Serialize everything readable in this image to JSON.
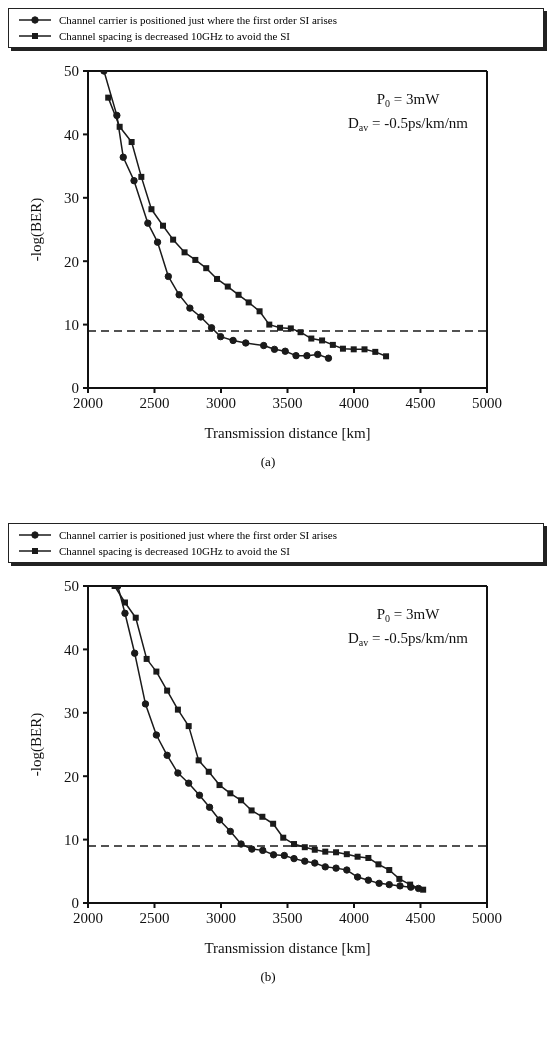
{
  "chart_data": [
    {
      "type": "line",
      "xlabel": "Transmission distance [km]",
      "ylabel": "-log(BER)",
      "xlim": [
        2000,
        5000
      ],
      "xticks": [
        2000,
        2500,
        3000,
        3500,
        4000,
        4500,
        5000
      ],
      "ylim": [
        0,
        50
      ],
      "yticks": [
        0,
        10,
        20,
        30,
        40,
        50
      ],
      "legend": "top",
      "grid": false,
      "line_style": "solid",
      "series": [
        {
          "name": "Channel carrier is positioned just where the first order SI arises",
          "color": "#1a1a1a",
          "marker": "circle",
          "x": [
            2120,
            2217,
            2265,
            2346,
            2450,
            2523,
            2604,
            2685,
            2766,
            2848,
            2929,
            2997,
            3091,
            3186,
            3321,
            3402,
            3483,
            3564,
            3646,
            3727,
            3808
          ],
          "values": [
            50,
            43,
            36.4,
            32.7,
            26,
            23,
            17.6,
            14.7,
            12.6,
            11.2,
            9.5,
            8.1,
            7.5,
            7.1,
            6.7,
            6.1,
            5.8,
            5.1,
            5.1,
            5.3,
            4.7
          ]
        },
        {
          "name": "Channel spacing is decreased 10GHz to avoid the SI",
          "color": "#1a1a1a",
          "marker": "square",
          "x": [
            2152,
            2238,
            2328,
            2401,
            2477,
            2564,
            2640,
            2726,
            2807,
            2889,
            2970,
            3051,
            3132,
            3208,
            3290,
            3363,
            3444,
            3525,
            3598,
            3679,
            3760,
            3841,
            3917,
            3998,
            4079,
            4160,
            4241
          ],
          "values": [
            45.8,
            41.2,
            38.8,
            33.3,
            28.2,
            25.6,
            23.4,
            21.4,
            20.2,
            18.9,
            17.2,
            16,
            14.7,
            13.5,
            12.1,
            10,
            9.5,
            9.4,
            8.8,
            7.8,
            7.5,
            6.8,
            6.2,
            6.1,
            6.1,
            5.7,
            5
          ]
        }
      ],
      "ref_lines": [
        {
          "axis": "y",
          "value": 9,
          "color": "#1a1a1a",
          "line_style": "dashed"
        }
      ],
      "annotations": [
        "P$_{0}$ = 3mW",
        "D$_{av}$ = -0.5ps/km/nm",
        "(a)"
      ]
    },
    {
      "type": "line",
      "xlabel": "Transmission distance [km]",
      "ylabel": "-log(BER)",
      "xlim": [
        2000,
        5000
      ],
      "xticks": [
        2000,
        2500,
        3000,
        3500,
        4000,
        4500,
        5000
      ],
      "ylim": [
        0,
        50
      ],
      "yticks": [
        0,
        10,
        20,
        30,
        40,
        50
      ],
      "legend": "top",
      "grid": false,
      "line_style": "solid",
      "series": [
        {
          "name": "Channel carrier is positioned just where the first order SI arises",
          "color": "#1a1a1a",
          "marker": "circle",
          "x": [
            2224,
            2278,
            2351,
            2432,
            2514,
            2595,
            2676,
            2757,
            2838,
            2914,
            2989,
            3070,
            3151,
            3232,
            3314,
            3395,
            3476,
            3549,
            3630,
            3705,
            3784,
            3865,
            3946,
            4027,
            4108,
            4189,
            4265,
            4346,
            4427,
            4485
          ],
          "values": [
            50,
            45.7,
            39.4,
            31.4,
            26.5,
            23.3,
            20.5,
            18.9,
            17,
            15.1,
            13.1,
            11.3,
            9.3,
            8.5,
            8.3,
            7.6,
            7.5,
            7,
            6.6,
            6.3,
            5.7,
            5.5,
            5.2,
            4.1,
            3.6,
            3.1,
            2.9,
            2.7,
            2.5,
            2.3
          ]
        },
        {
          "name": "Channel spacing is decreased 10GHz to avoid the SI",
          "color": "#1a1a1a",
          "marker": "square",
          "x": [
            2200,
            2278,
            2359,
            2441,
            2514,
            2595,
            2676,
            2757,
            2832,
            2908,
            2989,
            3070,
            3151,
            3230,
            3311,
            3392,
            3468,
            3549,
            3630,
            3705,
            3784,
            3865,
            3946,
            4027,
            4108,
            4184,
            4265,
            4341,
            4422,
            4520
          ],
          "values": [
            50,
            47.4,
            45,
            38.5,
            36.5,
            33.5,
            30.5,
            27.9,
            22.5,
            20.7,
            18.6,
            17.3,
            16.2,
            14.6,
            13.6,
            12.5,
            10.3,
            9.3,
            8.8,
            8.4,
            8.1,
            8,
            7.7,
            7.3,
            7.1,
            6.1,
            5.2,
            3.8,
            2.9,
            2.1
          ]
        }
      ],
      "ref_lines": [
        {
          "axis": "y",
          "value": 9,
          "color": "#1a1a1a",
          "line_style": "dashed"
        }
      ],
      "annotations": [
        "P$_{0}$ = 3mW",
        "D$_{av}$ = -0.5ps/km/nm",
        "(b)"
      ]
    }
  ]
}
